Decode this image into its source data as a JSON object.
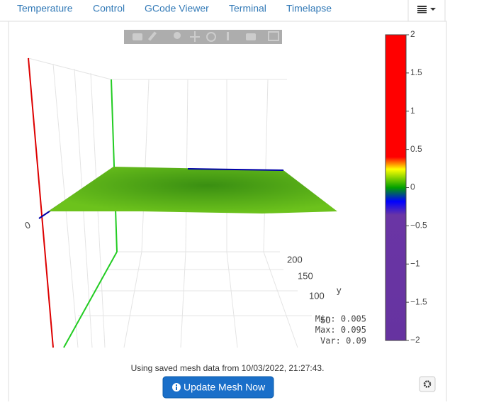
{
  "tabs": [
    "Temperature",
    "Control",
    "GCode Viewer",
    "Terminal",
    "Timelapse"
  ],
  "plot": {
    "x_axis_tick": "0",
    "y_axis_ticks": [
      "200",
      "150",
      "100",
      "50"
    ],
    "y_axis_title": "y",
    "colorbar_ticks": [
      "2",
      "1.5",
      "1",
      "0.5",
      "0",
      "−0.5",
      "−1",
      "−1.5",
      "−2"
    ],
    "stats": [
      "Min: 0.005",
      "Max: 0.095",
      "Var: 0.09"
    ]
  },
  "message": "Using saved mesh data from 10/03/2022, 21:27:43.",
  "button": "Update Mesh Now"
}
